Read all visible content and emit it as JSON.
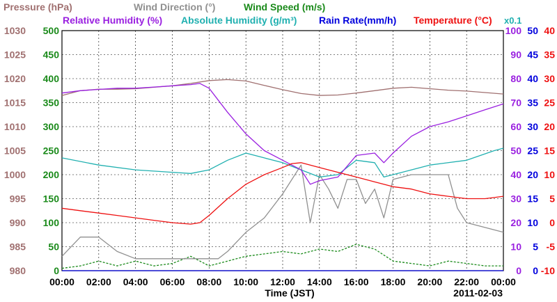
{
  "chart_data": {
    "type": "line",
    "x_axis": {
      "label": "Time (JST)",
      "ticks": [
        "00:00",
        "02:00",
        "04:00",
        "06:00",
        "08:00",
        "10:00",
        "12:00",
        "14:00",
        "16:00",
        "18:00",
        "20:00",
        "22:00",
        "00:00"
      ],
      "range_hours": [
        0,
        24
      ],
      "date": "2011-02-03"
    },
    "grid": true,
    "legend": [
      {
        "name": "Pressure (hPa)",
        "color": "#a07070"
      },
      {
        "name": "Wind Direction (°)",
        "color": "#909090"
      },
      {
        "name": "Wind Speed (m/s)",
        "color": "#1a8a1a"
      },
      {
        "name": "Relative Humidity (%)",
        "color": "#9a20e0"
      },
      {
        "name": "Absolute Humidity (g/m³)",
        "color": "#20b0b0"
      },
      {
        "name": "Rain Rate(mm/h)",
        "color": "#0000dd"
      },
      {
        "name": "Temperature (°C)",
        "color": "#ee1010"
      }
    ],
    "multiplier_note": "x0.1",
    "axes": [
      {
        "id": "pressure",
        "side": "left",
        "color": "#a07070",
        "min": 980,
        "max": 1030,
        "ticks": [
          "980",
          "985",
          "990",
          "995",
          "1000",
          "1005",
          "1010",
          "1015",
          "1020",
          "1025",
          "1030"
        ]
      },
      {
        "id": "wind",
        "side": "left",
        "color": "#1a8a1a",
        "min": 0,
        "max": 500,
        "ticks": [
          "0",
          "50",
          "100",
          "150",
          "200",
          "250",
          "300",
          "350",
          "400",
          "450",
          "500"
        ]
      },
      {
        "id": "humidity",
        "side": "right",
        "color": "#9a20e0",
        "min": 0,
        "max": 100,
        "ticks": [
          "0",
          "10",
          "20",
          "30",
          "40",
          "50",
          "60",
          "70",
          "80",
          "90",
          "100"
        ]
      },
      {
        "id": "rain",
        "side": "right",
        "color": "#0000dd",
        "min": 0,
        "max": 50,
        "ticks": [
          "0",
          "5",
          "10",
          "15",
          "20",
          "25",
          "30",
          "35",
          "40",
          "45",
          "50"
        ]
      },
      {
        "id": "temperature",
        "side": "right",
        "color": "#ee1010",
        "min": -10,
        "max": 40,
        "ticks": [
          "-10",
          "-5",
          "0",
          "5",
          "10",
          "15",
          "20",
          "25",
          "30",
          "35",
          "40"
        ]
      }
    ],
    "series": [
      {
        "name": "Pressure (hPa)",
        "axis": "pressure",
        "color": "#a07070",
        "points": [
          [
            0,
            1016.5
          ],
          [
            1,
            1017.5
          ],
          [
            2,
            1017.8
          ],
          [
            3,
            1017.8
          ],
          [
            4,
            1017.9
          ],
          [
            5,
            1018.2
          ],
          [
            6,
            1018.5
          ],
          [
            7,
            1019
          ],
          [
            8,
            1019.6
          ],
          [
            9,
            1019.8
          ],
          [
            10,
            1019.5
          ],
          [
            11,
            1018.6
          ],
          [
            12,
            1017.7
          ],
          [
            13,
            1016.9
          ],
          [
            14,
            1016.5
          ],
          [
            15,
            1016.6
          ],
          [
            16,
            1017
          ],
          [
            17,
            1017.5
          ],
          [
            18,
            1018
          ],
          [
            19,
            1018.2
          ],
          [
            20,
            1017.9
          ],
          [
            21,
            1017.6
          ],
          [
            22,
            1017.4
          ],
          [
            23,
            1017.1
          ],
          [
            24,
            1016.8
          ]
        ]
      },
      {
        "name": "Relative Humidity (%)",
        "axis": "humidity",
        "color": "#9a20e0",
        "points": [
          [
            0,
            74
          ],
          [
            1,
            75
          ],
          [
            2,
            75.5
          ],
          [
            3,
            76
          ],
          [
            4,
            76
          ],
          [
            5,
            76.5
          ],
          [
            6,
            77
          ],
          [
            7,
            77.5
          ],
          [
            7.5,
            78
          ],
          [
            8,
            76
          ],
          [
            9,
            66
          ],
          [
            10,
            57
          ],
          [
            11,
            50
          ],
          [
            12,
            46
          ],
          [
            13,
            42
          ],
          [
            13.5,
            36
          ],
          [
            14,
            37.5
          ],
          [
            15,
            39
          ],
          [
            16,
            48
          ],
          [
            17,
            49
          ],
          [
            17.5,
            45
          ],
          [
            18,
            49
          ],
          [
            19,
            56
          ],
          [
            20,
            60
          ],
          [
            21,
            62
          ],
          [
            22,
            64.5
          ],
          [
            23,
            67
          ],
          [
            24,
            69.5
          ]
        ]
      },
      {
        "name": "Absolute Humidity (g/m³)",
        "axis": "humidity",
        "color": "#20b0b0",
        "points": [
          [
            0,
            47
          ],
          [
            2,
            44
          ],
          [
            4,
            42
          ],
          [
            6,
            41
          ],
          [
            7,
            40.5
          ],
          [
            8,
            42
          ],
          [
            9,
            46
          ],
          [
            10,
            49
          ],
          [
            11,
            47
          ],
          [
            12,
            45
          ],
          [
            13,
            42
          ],
          [
            14,
            39
          ],
          [
            15,
            40
          ],
          [
            16,
            46
          ],
          [
            17,
            45
          ],
          [
            17.5,
            39
          ],
          [
            18,
            40
          ],
          [
            20,
            44
          ],
          [
            22,
            46
          ],
          [
            23.5,
            50
          ],
          [
            24,
            51
          ]
        ]
      },
      {
        "name": "Temperature (°C)",
        "axis": "temperature",
        "color": "#ee1010",
        "points": [
          [
            0,
            3
          ],
          [
            1,
            2.5
          ],
          [
            2,
            2
          ],
          [
            3,
            1.5
          ],
          [
            4,
            1
          ],
          [
            5,
            0.5
          ],
          [
            6,
            0
          ],
          [
            7,
            -0.3
          ],
          [
            7.5,
            0
          ],
          [
            8,
            1.5
          ],
          [
            9,
            5
          ],
          [
            10,
            8
          ],
          [
            11,
            10
          ],
          [
            12,
            11.5
          ],
          [
            12.5,
            12.3
          ],
          [
            13,
            12.5
          ],
          [
            14,
            11.5
          ],
          [
            15,
            10.5
          ],
          [
            16,
            9.5
          ],
          [
            17,
            8.5
          ],
          [
            18,
            7.5
          ],
          [
            19,
            7
          ],
          [
            20,
            6
          ],
          [
            21,
            5.5
          ],
          [
            22,
            5
          ],
          [
            23,
            5
          ],
          [
            24,
            5.5
          ]
        ]
      },
      {
        "name": "Wind Direction (°)",
        "axis": "wind",
        "color": "#909090",
        "points": [
          [
            0,
            30
          ],
          [
            1,
            70
          ],
          [
            2,
            70
          ],
          [
            3,
            40
          ],
          [
            4,
            25
          ],
          [
            5,
            25
          ],
          [
            6,
            25
          ],
          [
            7,
            25
          ],
          [
            8,
            25
          ],
          [
            8.5,
            25
          ],
          [
            9,
            40
          ],
          [
            10,
            80
          ],
          [
            11,
            110
          ],
          [
            12,
            160
          ],
          [
            13,
            220
          ],
          [
            13.5,
            100
          ],
          [
            14,
            200
          ],
          [
            14.5,
            170
          ],
          [
            15,
            130
          ],
          [
            15.5,
            190
          ],
          [
            16,
            190
          ],
          [
            16.5,
            140
          ],
          [
            17,
            170
          ],
          [
            17.5,
            110
          ],
          [
            18,
            190
          ],
          [
            19,
            200
          ],
          [
            20,
            200
          ],
          [
            21,
            200
          ],
          [
            21.5,
            130
          ],
          [
            22,
            100
          ],
          [
            23,
            90
          ],
          [
            24,
            80
          ]
        ]
      },
      {
        "name": "Wind Speed (m/s)",
        "axis": "wind",
        "color": "#1a8a1a",
        "points": [
          [
            0,
            5
          ],
          [
            1,
            10
          ],
          [
            2,
            20
          ],
          [
            3,
            10
          ],
          [
            4,
            20
          ],
          [
            5,
            10
          ],
          [
            6,
            15
          ],
          [
            7,
            30
          ],
          [
            8,
            10
          ],
          [
            9,
            20
          ],
          [
            10,
            30
          ],
          [
            11,
            35
          ],
          [
            12,
            40
          ],
          [
            13,
            35
          ],
          [
            14,
            45
          ],
          [
            15,
            40
          ],
          [
            16,
            55
          ],
          [
            17,
            45
          ],
          [
            18,
            20
          ],
          [
            19,
            15
          ],
          [
            20,
            10
          ],
          [
            21,
            20
          ],
          [
            22,
            15
          ],
          [
            23,
            10
          ],
          [
            24,
            10
          ]
        ]
      },
      {
        "name": "Rain Rate(mm/h)",
        "axis": "rain",
        "color": "#0000dd",
        "points": [
          [
            0,
            0
          ],
          [
            24,
            0
          ]
        ]
      }
    ]
  }
}
